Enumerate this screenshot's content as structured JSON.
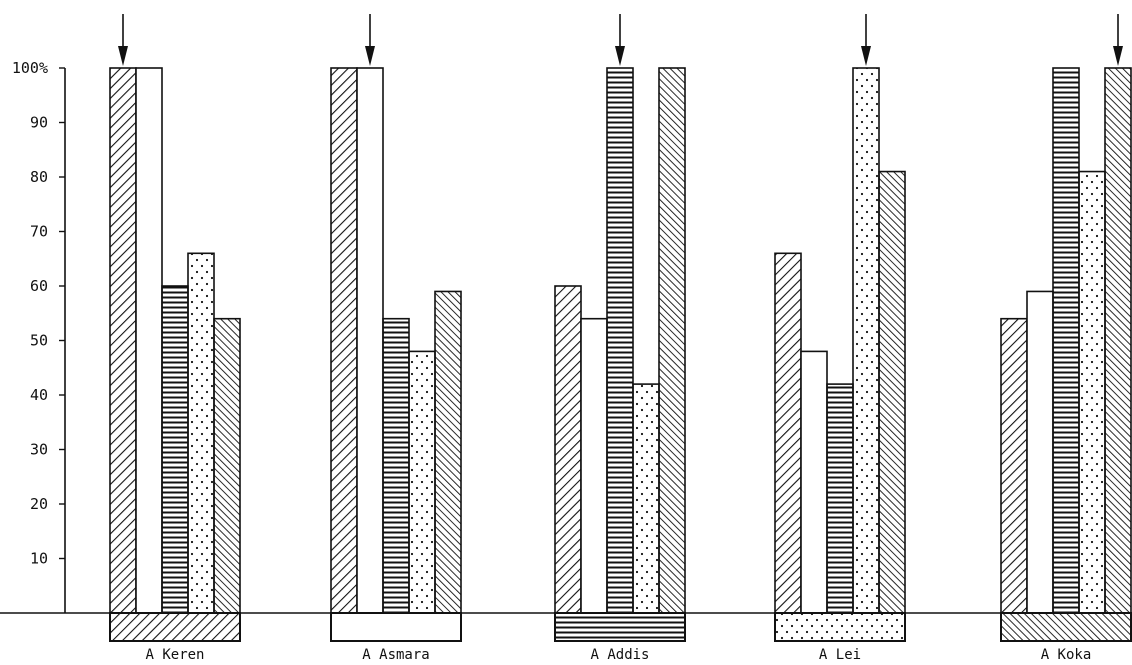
{
  "chart_data": {
    "type": "bar",
    "ylim": [
      0,
      100
    ],
    "y_ticks": [
      "100%",
      "90",
      "80",
      "70",
      "60",
      "50",
      "40",
      "30",
      "20",
      "10"
    ],
    "y_tick_values": [
      100,
      90,
      80,
      70,
      60,
      50,
      40,
      30,
      20,
      10
    ],
    "grid": false,
    "legend": "none",
    "categories": [
      "A Keren",
      "A Asmara",
      "A Addis",
      "A Lei",
      "A Koka"
    ],
    "bar_patterns": [
      "diagonal-hatch",
      "blank",
      "horizontal-lines",
      "dots",
      "reverse-diagonal-hatch"
    ],
    "series": [
      {
        "pattern": "diagonal-hatch",
        "values": [
          100,
          100,
          60,
          66,
          54
        ]
      },
      {
        "pattern": "blank",
        "values": [
          100,
          100,
          54,
          48,
          59
        ]
      },
      {
        "pattern": "horizontal-lines",
        "values": [
          60,
          54,
          100,
          42,
          100
        ]
      },
      {
        "pattern": "dots",
        "values": [
          66,
          48,
          42,
          100,
          81
        ]
      },
      {
        "pattern": "reverse-diagonal-hatch",
        "values": [
          54,
          59,
          100,
          81,
          100
        ]
      }
    ],
    "reference_patterns": [
      "diagonal-hatch",
      "blank",
      "horizontal-lines",
      "dots",
      "reverse-diagonal-hatch"
    ],
    "arrow_on_series": [
      0,
      1,
      2,
      3,
      4
    ]
  },
  "colors": {
    "ink": "#111111",
    "paper": "#ffffff"
  }
}
